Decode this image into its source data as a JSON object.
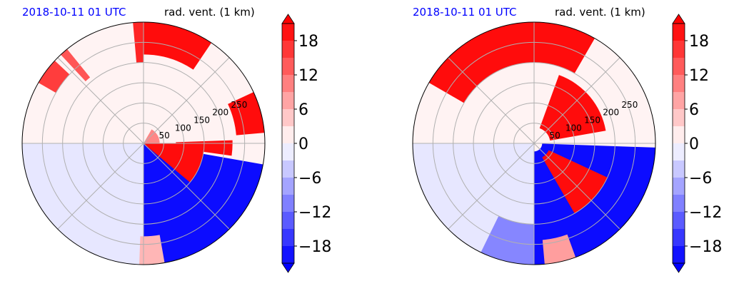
{
  "chart_data": [
    {
      "type": "heatmap",
      "projection": "polar",
      "title_left": "2018-10-11 01 UTC",
      "title_right": "rad. vent. (1 km)",
      "radial_ticks": [
        "50",
        "100",
        "150",
        "200",
        "250"
      ],
      "radial_tick_values": [
        50,
        100,
        150,
        200,
        250
      ],
      "rmax": 300,
      "grid": true,
      "colorbar": {
        "range": [
          -21,
          21
        ],
        "ticks": [
          18,
          12,
          6,
          0,
          -6,
          -12,
          -18
        ],
        "tick_labels": [
          "18",
          "12",
          "6",
          "0",
          "−6",
          "−12",
          "−18"
        ],
        "extend": "both",
        "colormap": "bwr"
      },
      "fields": [
        {
          "r": [
            0,
            300
          ],
          "theta": [
            0,
            180
          ],
          "value": 1
        },
        {
          "r": [
            0,
            300
          ],
          "theta": [
            180,
            360
          ],
          "value": -2
        },
        {
          "r": [
            0,
            300
          ],
          "theta": [
            -90,
            0
          ],
          "value": 1
        },
        {
          "r": [
            0,
            300
          ],
          "theta": [
            270,
            350
          ],
          "value": -20
        },
        {
          "r": [
            0,
            150
          ],
          "theta": [
            320,
            360
          ],
          "value": 20
        },
        {
          "r": [
            80,
            220
          ],
          "theta": [
            352,
            362
          ],
          "value": 20
        },
        {
          "r": [
            230,
            300
          ],
          "theta": [
            5,
            25
          ],
          "value": 20
        },
        {
          "r": [
            220,
            300
          ],
          "theta": [
            56,
            90
          ],
          "value": 20
        },
        {
          "r": [
            0,
            40
          ],
          "theta": [
            0,
            60
          ],
          "value": 10
        },
        {
          "r": [
            200,
            300
          ],
          "theta": [
            90,
            95
          ],
          "value": 18
        },
        {
          "r": [
            210,
            300
          ],
          "theta": [
            129,
            133
          ],
          "value": 14
        },
        {
          "r": [
            250,
            300
          ],
          "theta": [
            137,
            150
          ],
          "value": 16
        },
        {
          "r": [
            230,
            300
          ],
          "theta": [
            268,
            280
          ],
          "value": 6
        }
      ]
    },
    {
      "type": "heatmap",
      "projection": "polar",
      "title_left": "2018-10-11 01 UTC",
      "title_right": "rad. vent. (1 km)",
      "radial_ticks": [
        "50",
        "100",
        "150",
        "200",
        "250"
      ],
      "radial_tick_values": [
        50,
        100,
        150,
        200,
        250
      ],
      "rmax": 300,
      "grid": true,
      "colorbar": {
        "range": [
          -21,
          21
        ],
        "ticks": [
          18,
          12,
          6,
          0,
          -6,
          -12,
          -18
        ],
        "tick_labels": [
          "18",
          "12",
          "6",
          "0",
          "−6",
          "−12",
          "−18"
        ],
        "extend": "both",
        "colormap": "bwr"
      },
      "fields": [
        {
          "r": [
            0,
            300
          ],
          "theta": [
            0,
            180
          ],
          "value": 1
        },
        {
          "r": [
            0,
            300
          ],
          "theta": [
            180,
            360
          ],
          "value": -2
        },
        {
          "r": [
            0,
            300
          ],
          "theta": [
            -90,
            0
          ],
          "value": 1
        },
        {
          "r": [
            20,
            300
          ],
          "theta": [
            270,
            358
          ],
          "value": -20
        },
        {
          "r": [
            40,
            200
          ],
          "theta": [
            300,
            335
          ],
          "value": 20
        },
        {
          "r": [
            40,
            180
          ],
          "theta": [
            10,
            70
          ],
          "value": 20
        },
        {
          "r": [
            200,
            300
          ],
          "theta": [
            60,
            90
          ],
          "value": 20
        },
        {
          "r": [
            200,
            300
          ],
          "theta": [
            90,
            150
          ],
          "value": 20
        },
        {
          "r": [
            200,
            300
          ],
          "theta": [
            244,
            270
          ],
          "value": -10
        },
        {
          "r": [
            240,
            300
          ],
          "theta": [
            275,
            290
          ],
          "value": 8
        }
      ]
    }
  ]
}
